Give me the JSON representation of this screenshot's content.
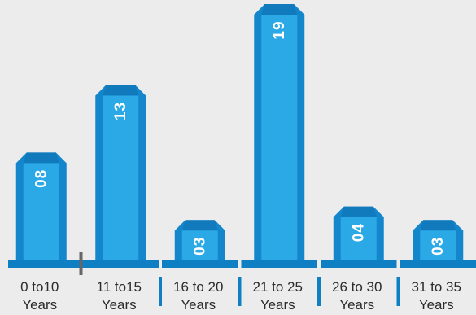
{
  "chart_data": {
    "type": "bar",
    "categories": [
      [
        "0 to10",
        "Years"
      ],
      [
        "11 to15",
        "Years"
      ],
      [
        "16 to 20",
        "Years"
      ],
      [
        "21 to 25",
        "Years"
      ],
      [
        "26 to 30",
        "Years"
      ],
      [
        "31 to 35",
        "Years"
      ]
    ],
    "values": [
      8,
      13,
      3,
      19,
      4,
      3
    ],
    "value_labels": [
      "08",
      "13",
      "03",
      "19",
      "04",
      "03"
    ],
    "title": "",
    "xlabel": "",
    "ylabel": "",
    "ylim": [
      0,
      19
    ],
    "grid": false,
    "legend": "none",
    "colors": {
      "bar_face": "#2aa9e6",
      "bar_side": "#1487cc",
      "bar_top": "#0f6fb0",
      "baseline": "#0e7fc3",
      "separator": "#0e7fc3",
      "separator_first": "#666666",
      "background": "#ececec"
    }
  }
}
